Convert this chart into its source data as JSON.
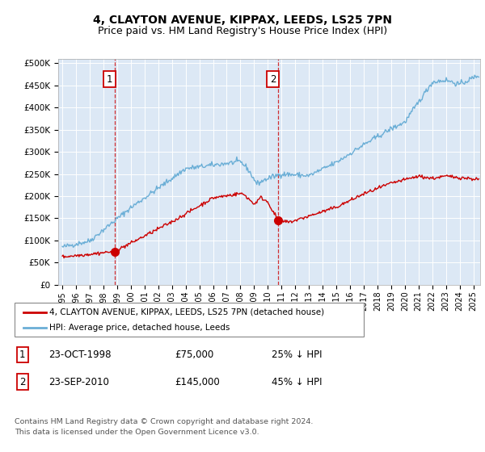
{
  "title": "4, CLAYTON AVENUE, KIPPAX, LEEDS, LS25 7PN",
  "subtitle": "Price paid vs. HM Land Registry's House Price Index (HPI)",
  "title_fontsize": 10,
  "subtitle_fontsize": 9,
  "background_color": "#ffffff",
  "plot_bg_color": "#dce8f5",
  "grid_color": "#ffffff",
  "hpi_color": "#6aaed6",
  "price_color": "#cc0000",
  "yticks": [
    0,
    50000,
    100000,
    150000,
    200000,
    250000,
    300000,
    350000,
    400000,
    450000,
    500000
  ],
  "sale1_date": 1998.81,
  "sale1_price": 75000,
  "sale1_label": "1",
  "sale2_date": 2010.73,
  "sale2_price": 145000,
  "sale2_label": "2",
  "legend_property": "4, CLAYTON AVENUE, KIPPAX, LEEDS, LS25 7PN (detached house)",
  "legend_hpi": "HPI: Average price, detached house, Leeds",
  "footer": "Contains HM Land Registry data © Crown copyright and database right 2024.\nThis data is licensed under the Open Government Licence v3.0.",
  "xmin": 1994.7,
  "xmax": 2025.5,
  "ymin": 0,
  "ymax": 510000
}
